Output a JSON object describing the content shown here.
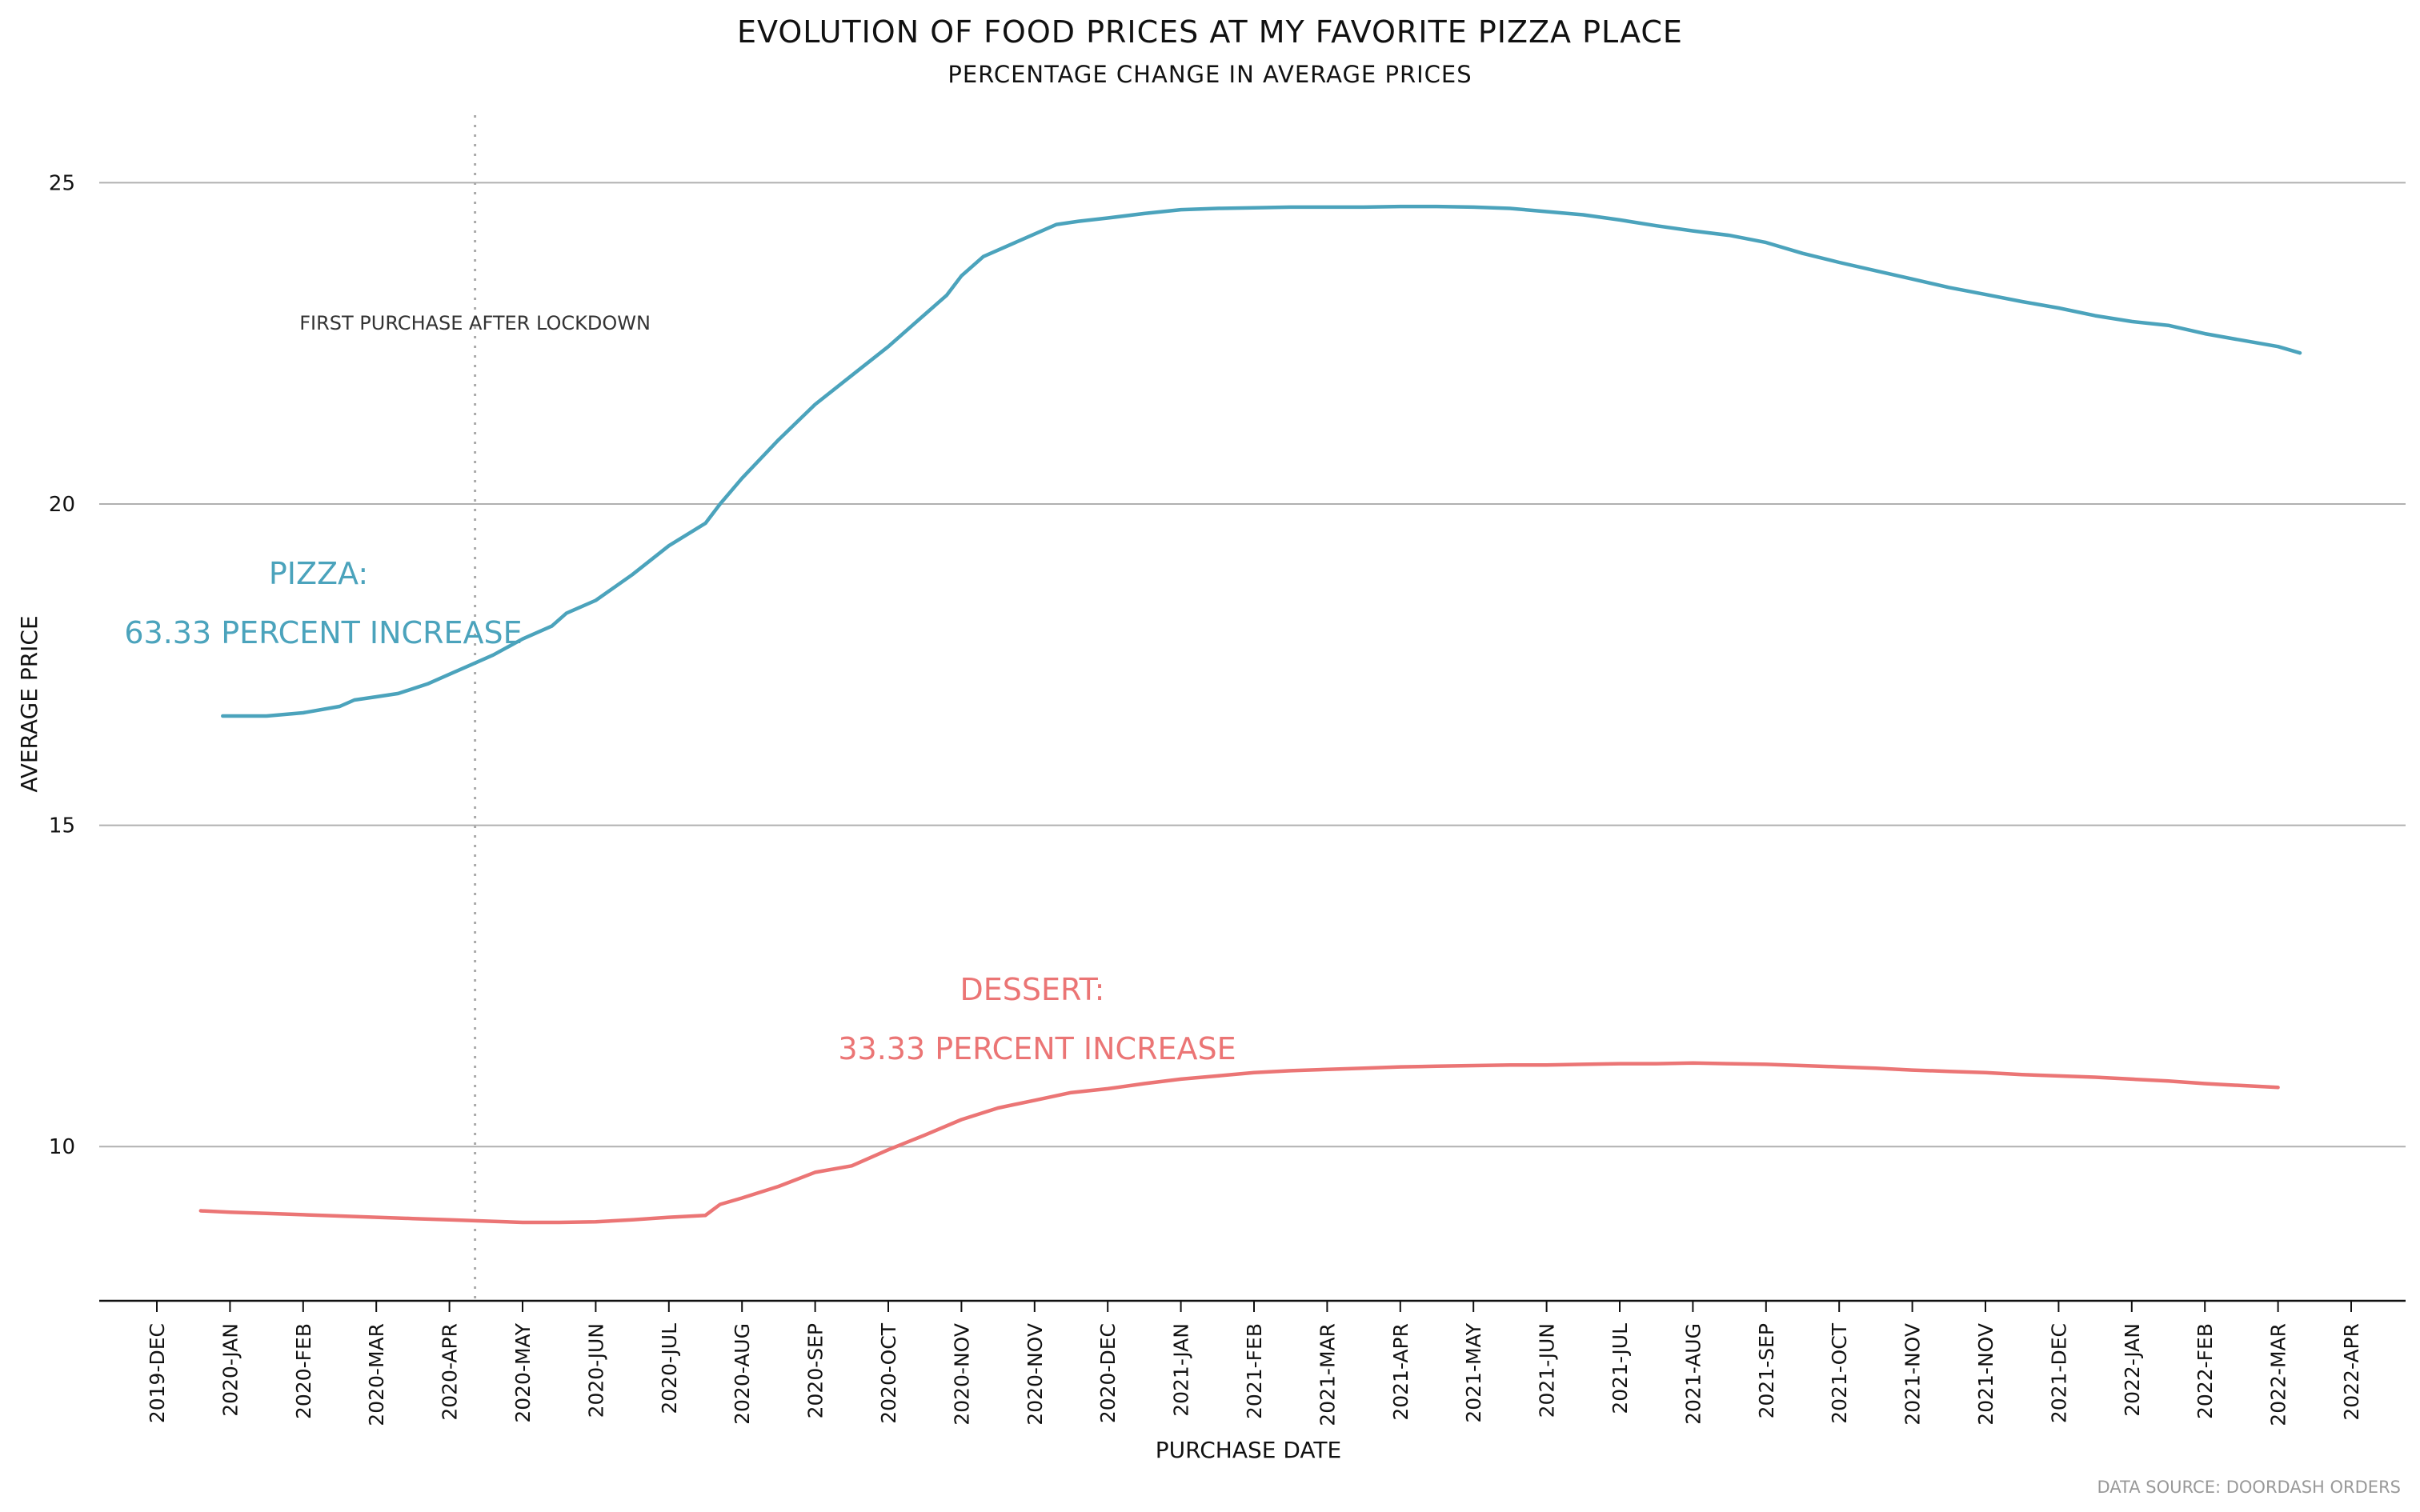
{
  "chart_data": {
    "type": "line",
    "title": "EVOLUTION OF FOOD PRICES AT MY FAVORITE PIZZA PLACE",
    "subtitle": "PERCENTAGE CHANGE IN AVERAGE PRICES",
    "xlabel": "PURCHASE DATE",
    "ylabel": "AVERAGE PRICE",
    "source": "DATA SOURCE: DOORDASH ORDERS",
    "y_ticks": [
      10,
      15,
      20,
      25
    ],
    "ylim": [
      7.6,
      26.1
    ],
    "grid": "horizontal",
    "x_tick_labels": [
      "2019-DEC",
      "2020-JAN",
      "2020-FEB",
      "2020-MAR",
      "2020-APR",
      "2020-MAY",
      "2020-JUN",
      "2020-JUL",
      "2020-AUG",
      "2020-SEP",
      "2020-OCT",
      "2020-NOV",
      "2020-NOV",
      "2020-DEC",
      "2021-JAN",
      "2021-FEB",
      "2021-MAR",
      "2021-APR",
      "2021-MAY",
      "2021-JUN",
      "2021-JUL",
      "2021-AUG",
      "2021-SEP",
      "2021-OCT",
      "2021-NOV",
      "2021-NOV",
      "2021-DEC",
      "2022-JAN",
      "2022-FEB",
      "2022-MAR",
      "2022-APR"
    ],
    "vline": {
      "x": 4.35,
      "label": "FIRST PURCHASE AFTER LOCKDOWN"
    },
    "colors": {
      "pizza": "#4ba3bc",
      "dessert": "#eb7575",
      "grid": "#b0b0b0",
      "vline": "#aaaaaa"
    },
    "series": [
      {
        "name": "PIZZA",
        "annotation": [
          "PIZZA:",
          "63.33 PERCENT INCREASE"
        ],
        "x": [
          0.9,
          1.2,
          1.5,
          2.0,
          2.5,
          2.7,
          3.0,
          3.3,
          3.7,
          4.0,
          4.3,
          4.6,
          5.0,
          5.4,
          5.6,
          6.0,
          6.5,
          7.0,
          7.5,
          7.7,
          8.0,
          8.5,
          9.0,
          9.5,
          10.0,
          10.5,
          10.8,
          11.0,
          11.3,
          11.8,
          12.3,
          12.6,
          13.0,
          13.5,
          14.0,
          14.5,
          15.0,
          15.5,
          16.0,
          16.5,
          17.0,
          17.5,
          18.0,
          18.5,
          19.0,
          19.5,
          20.0,
          20.5,
          21.0,
          21.5,
          22.0,
          22.5,
          23.0,
          23.5,
          24.0,
          24.5,
          25.0,
          25.5,
          26.0,
          26.5,
          27.0,
          27.5,
          28.0,
          28.5,
          29.0,
          29.3
        ],
        "values": [
          16.7,
          16.7,
          16.7,
          16.75,
          16.85,
          16.95,
          17.0,
          17.05,
          17.2,
          17.35,
          17.5,
          17.65,
          17.9,
          18.1,
          18.3,
          18.5,
          18.9,
          19.35,
          19.7,
          20.0,
          20.4,
          21.0,
          21.55,
          22.0,
          22.45,
          22.95,
          23.25,
          23.55,
          23.85,
          24.1,
          24.35,
          24.4,
          24.45,
          24.52,
          24.58,
          24.6,
          24.61,
          24.62,
          24.62,
          24.62,
          24.63,
          24.63,
          24.62,
          24.6,
          24.55,
          24.5,
          24.42,
          24.33,
          24.25,
          24.18,
          24.07,
          23.9,
          23.76,
          23.63,
          23.5,
          23.37,
          23.26,
          23.15,
          23.05,
          22.93,
          22.84,
          22.78,
          22.65,
          22.55,
          22.45,
          22.35
        ]
      },
      {
        "name": "DESSERT",
        "annotation": [
          "DESSERT:",
          "33.33 PERCENT INCREASE"
        ],
        "x": [
          0.6,
          1.0,
          1.5,
          2.0,
          2.5,
          3.0,
          3.5,
          4.0,
          4.5,
          5.0,
          5.5,
          6.0,
          6.5,
          7.0,
          7.5,
          7.7,
          8.0,
          8.5,
          9.0,
          9.5,
          10.0,
          10.5,
          11.0,
          11.5,
          12.0,
          12.5,
          13.0,
          13.5,
          14.0,
          14.5,
          15.0,
          15.5,
          16.0,
          16.5,
          17.0,
          17.5,
          18.0,
          18.5,
          19.0,
          19.5,
          20.0,
          20.5,
          21.0,
          21.5,
          22.0,
          22.5,
          23.0,
          23.5,
          24.0,
          24.5,
          25.0,
          25.5,
          26.0,
          26.5,
          27.0,
          27.5,
          28.0,
          28.5,
          29.0
        ],
        "values": [
          9.0,
          8.98,
          8.96,
          8.94,
          8.92,
          8.9,
          8.88,
          8.86,
          8.84,
          8.82,
          8.82,
          8.83,
          8.86,
          8.9,
          8.93,
          9.1,
          9.2,
          9.38,
          9.6,
          9.7,
          9.95,
          10.18,
          10.42,
          10.6,
          10.72,
          10.84,
          10.9,
          10.98,
          11.05,
          11.1,
          11.15,
          11.18,
          11.2,
          11.22,
          11.24,
          11.25,
          11.26,
          11.27,
          11.27,
          11.28,
          11.29,
          11.29,
          11.3,
          11.29,
          11.28,
          11.26,
          11.24,
          11.22,
          11.19,
          11.17,
          11.15,
          11.12,
          11.1,
          11.08,
          11.05,
          11.02,
          10.98,
          10.95,
          10.92
        ]
      }
    ]
  }
}
